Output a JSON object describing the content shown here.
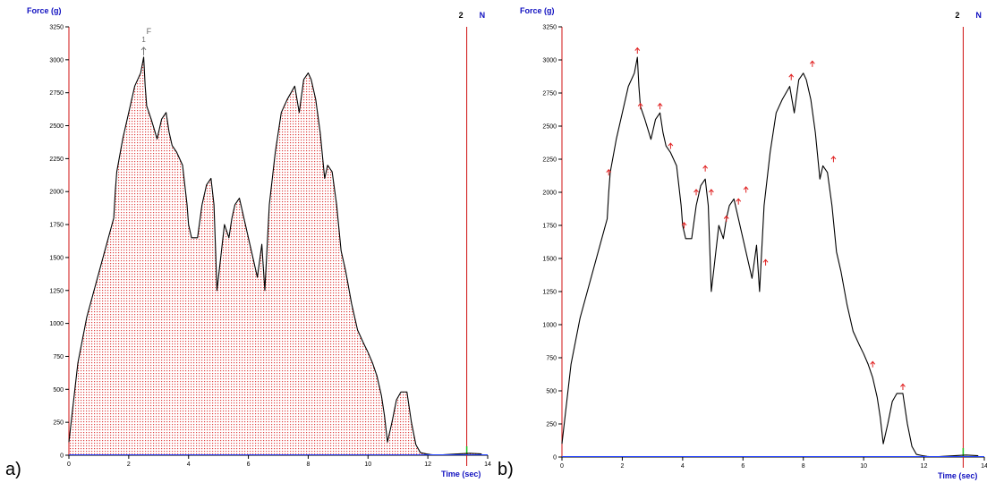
{
  "panel_labels": [
    "a)",
    "b)"
  ],
  "chart_data": [
    {
      "type": "area",
      "y_axis_label": "Force (g)",
      "x_axis_label": "Time (sec)",
      "xlim": [
        0,
        14
      ],
      "ylim": [
        0,
        3250
      ],
      "x_ticks": [
        "0",
        "2",
        "4",
        "6",
        "8",
        "10",
        "12",
        "14"
      ],
      "y_ticks": [
        "0",
        "250",
        "500",
        "750",
        "1000",
        "1250",
        "1500",
        "1750",
        "2000",
        "2250",
        "2500",
        "2750",
        "3000",
        "3250"
      ],
      "marker_label": "2",
      "marker_unit": "N",
      "marker_x": 13.3,
      "peak_annotation": {
        "label": "F",
        "index": "1",
        "x": 2.5,
        "y": 3020
      },
      "fill": "red dotted hatch",
      "series": [
        {
          "x": [
            0,
            0.3,
            0.6,
            0.9,
            1.2,
            1.5,
            1.55,
            1.6,
            1.8,
            2.0,
            2.2,
            2.4,
            2.5,
            2.55,
            2.6,
            2.75,
            2.95,
            3.1,
            3.25,
            3.35,
            3.45,
            3.6,
            3.8,
            3.95,
            4.0,
            4.1,
            4.3,
            4.45,
            4.6,
            4.75,
            4.85,
            4.95,
            5.05,
            5.2,
            5.35,
            5.45,
            5.55,
            5.7,
            5.85,
            6.0,
            6.1,
            6.2,
            6.3,
            6.45,
            6.55,
            6.7,
            6.9,
            7.1,
            7.3,
            7.55,
            7.7,
            7.85,
            8.0,
            8.1,
            8.25,
            8.4,
            8.55,
            8.65,
            8.8,
            8.95,
            9.1,
            9.25,
            9.45,
            9.65,
            9.85,
            10.0,
            10.15,
            10.3,
            10.45,
            10.55,
            10.65,
            10.8,
            10.95,
            11.1,
            11.3,
            11.45,
            11.6,
            11.75,
            11.95,
            12.1,
            12.3,
            12.6,
            13.0,
            13.4,
            13.8
          ],
          "y": [
            100,
            700,
            1050,
            1300,
            1550,
            1800,
            2000,
            2150,
            2400,
            2600,
            2800,
            2900,
            3020,
            2800,
            2650,
            2550,
            2400,
            2550,
            2600,
            2450,
            2350,
            2300,
            2200,
            1900,
            1750,
            1650,
            1650,
            1900,
            2050,
            2100,
            1900,
            1250,
            1450,
            1750,
            1650,
            1800,
            1900,
            1950,
            1800,
            1650,
            1550,
            1450,
            1350,
            1600,
            1250,
            1900,
            2300,
            2600,
            2700,
            2800,
            2600,
            2850,
            2900,
            2850,
            2700,
            2450,
            2100,
            2200,
            2150,
            1900,
            1550,
            1400,
            1150,
            950,
            850,
            780,
            700,
            600,
            450,
            300,
            100,
            250,
            420,
            480,
            480,
            250,
            80,
            20,
            10,
            5,
            0,
            5,
            10,
            15,
            10
          ]
        }
      ]
    },
    {
      "type": "line",
      "y_axis_label": "Force (g)",
      "x_axis_label": "Time (sec)",
      "xlim": [
        0,
        14
      ],
      "ylim": [
        0,
        3250
      ],
      "x_ticks": [
        "0",
        "2",
        "4",
        "6",
        "8",
        "10",
        "12",
        "14"
      ],
      "y_ticks": [
        "0",
        "250",
        "500",
        "750",
        "1000",
        "1250",
        "1500",
        "1750",
        "2000",
        "2250",
        "2500",
        "2750",
        "3000",
        "3250"
      ],
      "marker_label": "2",
      "marker_unit": "N",
      "marker_x": 13.3,
      "series": [
        {
          "x": [
            0,
            0.3,
            0.6,
            0.9,
            1.2,
            1.5,
            1.55,
            1.6,
            1.8,
            2.0,
            2.2,
            2.4,
            2.5,
            2.55,
            2.6,
            2.75,
            2.95,
            3.1,
            3.25,
            3.35,
            3.45,
            3.6,
            3.8,
            3.95,
            4.0,
            4.1,
            4.3,
            4.45,
            4.6,
            4.75,
            4.85,
            4.95,
            5.05,
            5.2,
            5.35,
            5.45,
            5.55,
            5.7,
            5.85,
            6.0,
            6.1,
            6.2,
            6.3,
            6.45,
            6.55,
            6.7,
            6.9,
            7.1,
            7.3,
            7.55,
            7.7,
            7.85,
            8.0,
            8.1,
            8.25,
            8.4,
            8.55,
            8.65,
            8.8,
            8.95,
            9.1,
            9.25,
            9.45,
            9.65,
            9.85,
            10.0,
            10.15,
            10.3,
            10.45,
            10.55,
            10.65,
            10.8,
            10.95,
            11.1,
            11.3,
            11.45,
            11.6,
            11.75,
            11.95,
            12.1,
            12.3,
            12.6,
            13.0,
            13.4,
            13.8
          ],
          "y": [
            100,
            700,
            1050,
            1300,
            1550,
            1800,
            2000,
            2150,
            2400,
            2600,
            2800,
            2900,
            3020,
            2800,
            2650,
            2550,
            2400,
            2550,
            2600,
            2450,
            2350,
            2300,
            2200,
            1900,
            1750,
            1650,
            1650,
            1900,
            2050,
            2100,
            1900,
            1250,
            1450,
            1750,
            1650,
            1800,
            1900,
            1950,
            1800,
            1650,
            1550,
            1450,
            1350,
            1600,
            1250,
            1900,
            2300,
            2600,
            2700,
            2800,
            2600,
            2850,
            2900,
            2850,
            2700,
            2450,
            2100,
            2200,
            2150,
            1900,
            1550,
            1400,
            1150,
            950,
            850,
            780,
            700,
            600,
            450,
            300,
            100,
            250,
            420,
            480,
            480,
            250,
            80,
            20,
            10,
            5,
            0,
            5,
            10,
            15,
            10
          ]
        }
      ],
      "peak_markers": [
        {
          "x": 1.55,
          "y": 2100
        },
        {
          "x": 2.5,
          "y": 3020
        },
        {
          "x": 2.6,
          "y": 2600
        },
        {
          "x": 3.25,
          "y": 2600
        },
        {
          "x": 3.6,
          "y": 2300
        },
        {
          "x": 4.05,
          "y": 1700
        },
        {
          "x": 4.45,
          "y": 1950
        },
        {
          "x": 4.75,
          "y": 2130
        },
        {
          "x": 4.95,
          "y": 1950
        },
        {
          "x": 5.45,
          "y": 1750
        },
        {
          "x": 5.85,
          "y": 1880
        },
        {
          "x": 6.1,
          "y": 1970
        },
        {
          "x": 6.75,
          "y": 1420
        },
        {
          "x": 7.6,
          "y": 2820
        },
        {
          "x": 8.3,
          "y": 2920
        },
        {
          "x": 9.0,
          "y": 2200
        },
        {
          "x": 10.3,
          "y": 650
        },
        {
          "x": 11.3,
          "y": 480
        }
      ]
    }
  ]
}
